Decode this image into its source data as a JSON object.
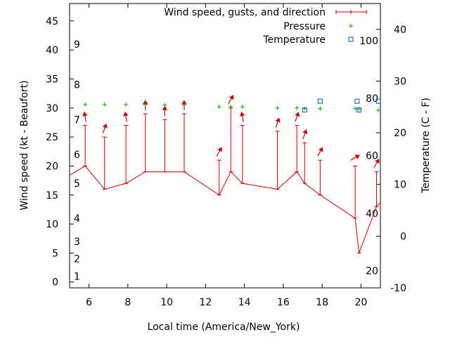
{
  "chart_data": {
    "type": "line",
    "xlabel": "Local time (America/New_York)",
    "ylabel": "Wind speed (kt - Beaufort)",
    "y2label": "Temperature (C - F)",
    "xlim": [
      5,
      21
    ],
    "ylim": [
      -1,
      48
    ],
    "y2lim": [
      -10,
      45
    ],
    "x_ticks": [
      6,
      8,
      10,
      12,
      14,
      16,
      18,
      20
    ],
    "y_ticks": [
      0,
      5,
      10,
      15,
      20,
      25,
      30,
      35,
      40,
      45
    ],
    "y2_ticks": [
      -10,
      0,
      10,
      20,
      30,
      40
    ],
    "beaufort_labels": [
      {
        "label": "1",
        "value": 1
      },
      {
        "label": "2",
        "value": 4
      },
      {
        "label": "3",
        "value": 7
      },
      {
        "label": "4",
        "value": 11
      },
      {
        "label": "5",
        "value": 17
      },
      {
        "label": "6",
        "value": 22
      },
      {
        "label": "7",
        "value": 28
      },
      {
        "label": "8",
        "value": 34
      },
      {
        "label": "9",
        "value": 41
      }
    ],
    "fahrenheit_labels": [
      {
        "label": "20",
        "value": -6.7
      },
      {
        "label": "40",
        "value": 4.4
      },
      {
        "label": "60",
        "value": 15.6
      },
      {
        "label": "80",
        "value": 26.7
      },
      {
        "label": "100",
        "value": 37.8
      }
    ],
    "legend": {
      "position": "top-right",
      "wind": "Wind speed, gusts, and direction",
      "pressure": "Pressure",
      "temperature": "Temperature"
    },
    "series": [
      {
        "name": "Wind speed, gusts, and direction",
        "color": "#cc0000",
        "points": [
          {
            "x": 4.8,
            "speed": 18,
            "gust": 18,
            "dir": 45
          },
          {
            "x": 5.8,
            "speed": 20,
            "gust": 27,
            "dir": 350
          },
          {
            "x": 6.8,
            "speed": 16,
            "gust": 25,
            "dir": 20
          },
          {
            "x": 7.9,
            "speed": 17,
            "gust": 27,
            "dir": 350
          },
          {
            "x": 8.9,
            "speed": 19,
            "gust": 29,
            "dir": 0
          },
          {
            "x": 9.9,
            "speed": 19,
            "gust": 28,
            "dir": 0
          },
          {
            "x": 10.9,
            "speed": 19,
            "gust": 29,
            "dir": 0
          },
          {
            "x": 12.7,
            "speed": 15,
            "gust": 21,
            "dir": 30
          },
          {
            "x": 13.3,
            "speed": 19,
            "gust": 30,
            "dir": 30
          },
          {
            "x": 13.9,
            "speed": 17,
            "gust": 27,
            "dir": 350
          },
          {
            "x": 15.7,
            "speed": 16,
            "gust": 26,
            "dir": 20
          },
          {
            "x": 16.7,
            "speed": 19,
            "gust": 27,
            "dir": 20
          },
          {
            "x": 17.1,
            "speed": 17,
            "gust": 24,
            "dir": 20
          },
          {
            "x": 17.9,
            "speed": 15,
            "gust": 21,
            "dir": 30
          },
          {
            "x": 19.7,
            "speed": 11,
            "gust": 20,
            "dir": 60
          },
          {
            "x": 19.9,
            "speed": 5,
            "gust": 5,
            "dir": 0
          },
          {
            "x": 20.8,
            "speed": 13,
            "gust": 19,
            "dir": 30
          },
          {
            "x": 21.1,
            "speed": 14,
            "gust": 14,
            "dir": 0
          }
        ]
      },
      {
        "name": "Pressure",
        "color": "#00aa00",
        "points": [
          {
            "x": 5.8,
            "y": 30.6
          },
          {
            "x": 6.8,
            "y": 30.6
          },
          {
            "x": 7.9,
            "y": 30.6
          },
          {
            "x": 8.9,
            "y": 30.6
          },
          {
            "x": 9.9,
            "y": 30.5
          },
          {
            "x": 10.9,
            "y": 30.5
          },
          {
            "x": 12.7,
            "y": 30.2
          },
          {
            "x": 13.3,
            "y": 30.2
          },
          {
            "x": 13.9,
            "y": 30.2
          },
          {
            "x": 15.7,
            "y": 30.0
          },
          {
            "x": 16.7,
            "y": 30.0
          },
          {
            "x": 17.1,
            "y": 29.9
          },
          {
            "x": 17.9,
            "y": 29.9
          },
          {
            "x": 19.7,
            "y": 29.9
          },
          {
            "x": 19.9,
            "y": 29.8
          },
          {
            "x": 20.9,
            "y": 29.6
          }
        ]
      },
      {
        "name": "Temperature",
        "color": "#0055cc",
        "points": [
          {
            "x": 17.1,
            "y": 24.4
          },
          {
            "x": 17.9,
            "y": 26.1
          },
          {
            "x": 19.8,
            "y": 26.1
          },
          {
            "x": 19.9,
            "y": 24.4
          },
          {
            "x": 20.9,
            "y": 26.1
          }
        ]
      }
    ]
  }
}
